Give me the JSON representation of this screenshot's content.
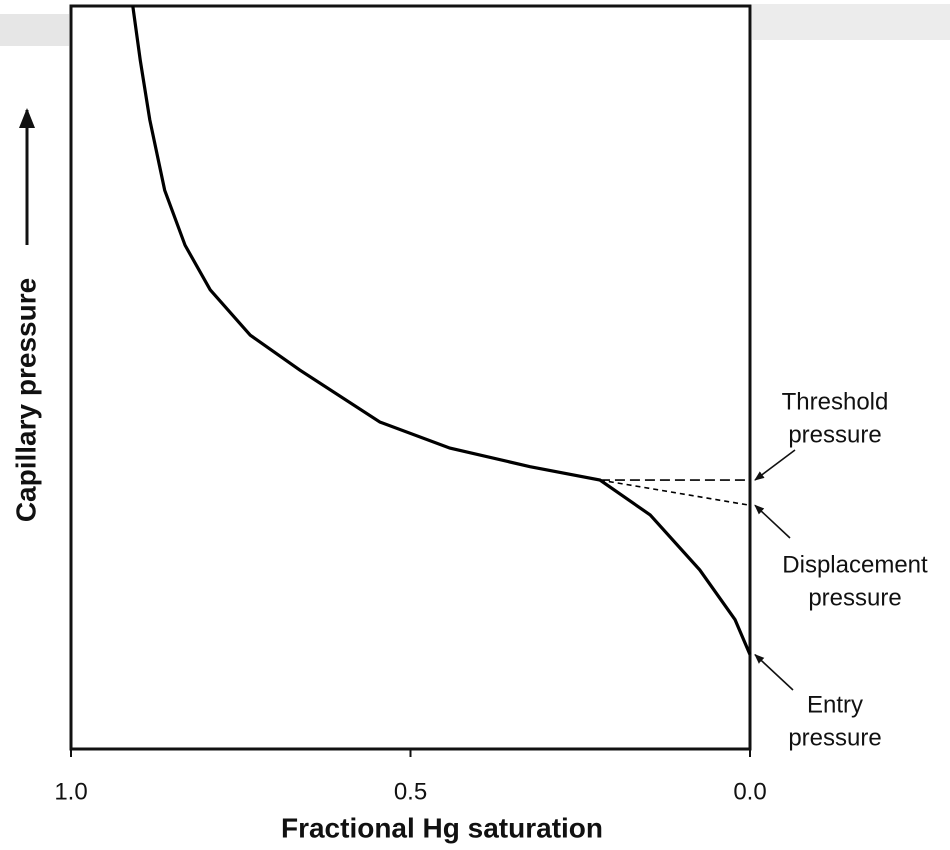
{
  "chart_data": {
    "type": "line",
    "xlabel": "Fractional Hg saturation",
    "ylabel": "Capillary pressure",
    "xlim": [
      1.0,
      0.0
    ],
    "xticks": [
      {
        "value": 1.0,
        "label": "1.0"
      },
      {
        "value": 0.5,
        "label": "0.5"
      },
      {
        "value": 0.0,
        "label": "0.0"
      }
    ],
    "ylim": [
      0,
      1
    ],
    "series": [
      {
        "color": "#000000",
        "dash": false,
        "x": [
          0.909,
          0.898,
          0.884,
          0.862,
          0.832,
          0.795,
          0.736,
          0.663,
          0.545,
          0.442,
          0.324,
          0.221,
          0.147,
          0.074,
          0.022,
          0.0
        ],
        "values": [
          1.0,
          0.927,
          0.847,
          0.752,
          0.678,
          0.618,
          0.557,
          0.51,
          0.44,
          0.405,
          0.38,
          0.362,
          0.315,
          0.241,
          0.174,
          0.127
        ]
      },
      {
        "color": "#000000",
        "dash": true,
        "x": [
          0.221,
          0.0
        ],
        "values": [
          0.362,
          0.362
        ]
      },
      {
        "color": "#000000",
        "dash": true,
        "x": [
          0.221,
          0.0
        ],
        "values": [
          0.362,
          0.328
        ]
      }
    ],
    "annotations": [
      {
        "text": [
          "Threshold",
          "pressure"
        ],
        "x": 0.0,
        "y": 0.362
      },
      {
        "text": [
          "Displacement",
          "pressure"
        ],
        "x": 0.0,
        "y": 0.328
      },
      {
        "text": [
          "Entry",
          "pressure"
        ],
        "x": 0.0,
        "y": 0.127
      }
    ]
  }
}
